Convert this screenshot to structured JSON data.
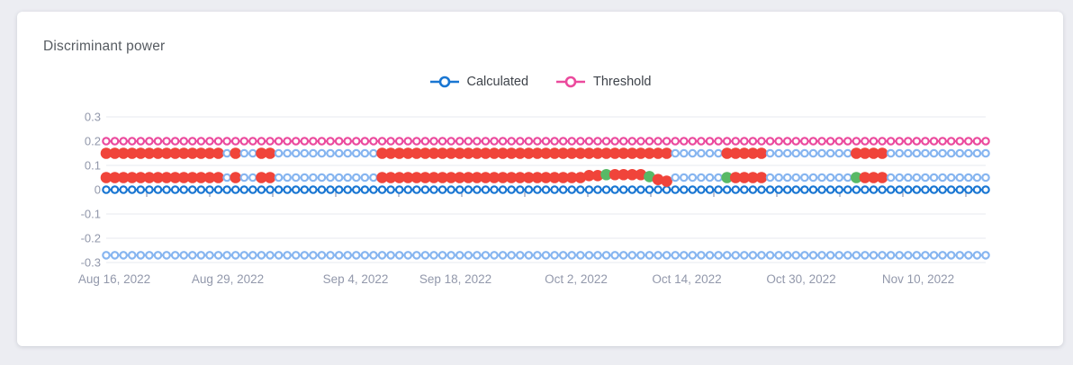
{
  "page_background": "#ecedf2",
  "card": {
    "title": "Discriminant power",
    "background": "#ffffff"
  },
  "legend": {
    "items": [
      {
        "label": "Calculated",
        "color": "#1976d2"
      },
      {
        "label": "Threshold",
        "color": "#eb4a9d"
      }
    ]
  },
  "axis": {
    "label_color": "#9298ab",
    "grid_color": "#e7e9ef",
    "minor_tick_color": "#7a84a8"
  },
  "chart_data": {
    "type": "scatter",
    "title": "Discriminant power",
    "grid": true,
    "legend_position": "top-center",
    "n_points": 103,
    "x_axis": {
      "tick_labels": [
        "Aug 16, 2022",
        "Aug 29, 2022",
        "Sep 4, 2022",
        "Sep 18, 2022",
        "Oct 2, 2022",
        "Oct 14, 2022",
        "Oct 30, 2022",
        "Nov 10, 2022"
      ]
    },
    "y_axis": {
      "range": [
        -0.35,
        0.35
      ],
      "ticks": [
        {
          "label": "0.3",
          "v": 0.3
        },
        {
          "label": "0.2",
          "v": 0.2
        },
        {
          "label": "0.1",
          "v": 0.1
        },
        {
          "label": "0",
          "v": 0
        },
        {
          "label": "-0.1",
          "v": -0.1
        },
        {
          "label": "-0.2",
          "v": -0.2
        },
        {
          "label": "-0.3",
          "v": -0.3
        }
      ]
    },
    "colors": {
      "blue": "#1976d2",
      "pink": "#eb4a9d",
      "lightblue": "#86b5f0",
      "red": "#f0443a",
      "green": "#58b966"
    },
    "series": [
      {
        "name": "lower-baseline",
        "value": -0.27,
        "marker": "open-circle-line",
        "segments": [
          {
            "c": "lightblue",
            "n": 103
          }
        ]
      },
      {
        "name": "Threshold",
        "in_legend": true,
        "value": 0.2,
        "marker": "open-circle-line",
        "segments": [
          {
            "c": "pink",
            "n": 103
          }
        ]
      },
      {
        "name": "Calculated",
        "in_legend": true,
        "value": 0,
        "marker": "open-circle-line",
        "segments": [
          {
            "c": "blue",
            "n": 103
          }
        ]
      },
      {
        "name": "upper-band",
        "value": 0.15,
        "marker": "mixed",
        "segments": [
          {
            "c": "red",
            "n": 14
          },
          {
            "c": "lightblue",
            "n": 1
          },
          {
            "c": "red",
            "n": 1
          },
          {
            "c": "lightblue",
            "n": 2
          },
          {
            "c": "red",
            "n": 2
          },
          {
            "c": "lightblue",
            "n": 12
          },
          {
            "c": "red",
            "n": 34
          },
          {
            "c": "lightblue",
            "n": 6
          },
          {
            "c": "red",
            "n": 5
          },
          {
            "c": "lightblue",
            "n": 10
          },
          {
            "c": "red",
            "n": 4
          },
          {
            "c": "lightblue",
            "n": 12
          }
        ]
      },
      {
        "name": "lower-band",
        "value": 0.05,
        "marker": "mixed",
        "segments": [
          {
            "c": "red",
            "n": 14
          },
          {
            "c": "lightblue",
            "n": 1
          },
          {
            "c": "red",
            "n": 1
          },
          {
            "c": "lightblue",
            "n": 2
          },
          {
            "c": "red",
            "n": 2
          },
          {
            "c": "lightblue",
            "n": 12
          },
          {
            "c": "red",
            "n": 24
          },
          {
            "c": "red",
            "n": 2,
            "dv": 0.008
          },
          {
            "c": "green",
            "n": 1,
            "dv": 0.012
          },
          {
            "c": "red",
            "n": 4,
            "dv": 0.012
          },
          {
            "c": "green",
            "n": 1,
            "dv": 0.004
          },
          {
            "c": "red",
            "n": 1,
            "dv": -0.008
          },
          {
            "c": "red",
            "n": 1,
            "dv": -0.015
          },
          {
            "c": "lightblue",
            "n": 6
          },
          {
            "c": "green",
            "n": 1
          },
          {
            "c": "red",
            "n": 4
          },
          {
            "c": "lightblue",
            "n": 10
          },
          {
            "c": "green",
            "n": 1
          },
          {
            "c": "red",
            "n": 3
          },
          {
            "c": "lightblue",
            "n": 12
          }
        ]
      }
    ]
  }
}
